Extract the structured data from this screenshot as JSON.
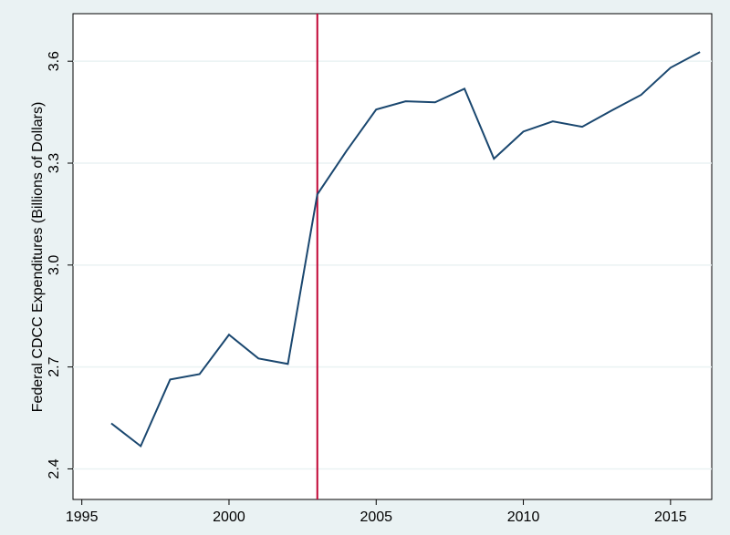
{
  "chart_data": {
    "type": "line",
    "y_label": "Federal CDCC Expenditures (Billions of Dollars)",
    "x": [
      1996,
      1997,
      1998,
      1999,
      2000,
      2001,
      2002,
      2003,
      2004,
      2005,
      2006,
      2007,
      2008,
      2009,
      2010,
      2011,
      2012,
      2013,
      2014,
      2015,
      2016
    ],
    "values": [
      2.534,
      2.467,
      2.663,
      2.679,
      2.795,
      2.725,
      2.709,
      3.208,
      3.337,
      3.458,
      3.482,
      3.479,
      3.519,
      3.313,
      3.393,
      3.423,
      3.407,
      3.455,
      3.501,
      3.581,
      3.627
    ],
    "color": "#1a476f",
    "xlim": [
      1994.7,
      2016.4
    ],
    "xticks": [
      1995,
      2000,
      2005,
      2010,
      2015
    ],
    "ylim": [
      2.31,
      3.74
    ],
    "yticks": [
      2.4,
      2.7,
      {
        "value": 3,
        "label": "3.0"
      },
      3.3,
      3.6
    ],
    "grid": true,
    "vline": {
      "value": 2003,
      "color": "#c10534"
    }
  }
}
